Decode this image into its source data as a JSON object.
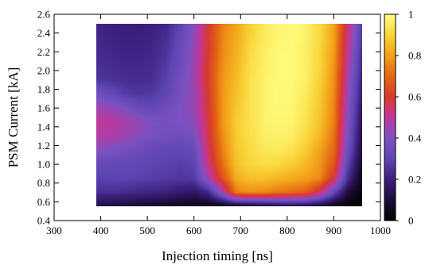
{
  "chart_data": {
    "type": "heatmap",
    "title": "",
    "xlabel": "Injection timing [ns]",
    "ylabel": "PSM Current [kA]",
    "xlim": [
      300,
      1000
    ],
    "ylim": [
      0.4,
      2.6
    ],
    "data_extent": {
      "x": [
        390,
        960
      ],
      "y": [
        0.55,
        2.5
      ]
    },
    "xticks": [
      300,
      400,
      500,
      600,
      700,
      800,
      900,
      1000
    ],
    "yticks": [
      0.4,
      0.6,
      0.8,
      1.0,
      1.2,
      1.4,
      1.6,
      1.8,
      2.0,
      2.2,
      2.4,
      2.6
    ],
    "ytick_labels": [
      "0.4",
      "0.6",
      "0.8",
      "1.0",
      "1.2",
      "1.4",
      "1.6",
      "1.8",
      "2.0",
      "2.2",
      "2.4",
      "2.6"
    ],
    "colorbar": {
      "range": [
        0,
        1
      ],
      "ticks": [
        0,
        0.2,
        0.4,
        0.6,
        0.8,
        1
      ],
      "tick_labels": [
        "0",
        "0.2",
        "0.4",
        "0.6",
        "0.8",
        "1"
      ]
    },
    "colormap": [
      "#000000",
      "#1c0c38",
      "#3c1f7e",
      "#5e45b2",
      "#7b52c2",
      "#c2379b",
      "#d83a2e",
      "#e46614",
      "#f3a119",
      "#f9d53a",
      "#ffff80"
    ],
    "grid": false,
    "legend": "none",
    "grid_x": [
      390,
      420,
      450,
      480,
      510,
      540,
      570,
      600,
      630,
      660,
      690,
      720,
      750,
      780,
      810,
      840,
      870,
      900,
      930,
      960
    ],
    "grid_y": [
      0.55,
      0.7,
      0.85,
      1.0,
      1.15,
      1.3,
      1.45,
      1.6,
      1.75,
      1.9,
      2.05,
      2.2,
      2.35,
      2.5
    ],
    "values": [
      [
        0.12,
        0.11,
        0.1,
        0.09,
        0.08,
        0.07,
        0.06,
        0.05,
        0.04,
        0.04,
        0.05,
        0.07,
        0.09,
        0.11,
        0.12,
        0.11,
        0.08,
        0.04,
        0.02,
        0.01
      ],
      [
        0.24,
        0.24,
        0.23,
        0.22,
        0.21,
        0.2,
        0.18,
        0.16,
        0.22,
        0.45,
        0.74,
        0.77,
        0.76,
        0.73,
        0.71,
        0.68,
        0.55,
        0.32,
        0.1,
        0.02
      ],
      [
        0.29,
        0.3,
        0.3,
        0.29,
        0.28,
        0.27,
        0.26,
        0.27,
        0.45,
        0.65,
        0.82,
        0.86,
        0.86,
        0.84,
        0.82,
        0.8,
        0.76,
        0.58,
        0.23,
        0.05
      ],
      [
        0.33,
        0.32,
        0.32,
        0.31,
        0.3,
        0.29,
        0.28,
        0.3,
        0.52,
        0.71,
        0.86,
        0.9,
        0.92,
        0.91,
        0.88,
        0.84,
        0.78,
        0.66,
        0.3,
        0.07
      ],
      [
        0.42,
        0.4,
        0.38,
        0.35,
        0.32,
        0.31,
        0.31,
        0.33,
        0.55,
        0.74,
        0.87,
        0.91,
        0.94,
        0.95,
        0.93,
        0.88,
        0.8,
        0.7,
        0.35,
        0.1
      ],
      [
        0.48,
        0.47,
        0.45,
        0.42,
        0.39,
        0.37,
        0.36,
        0.39,
        0.57,
        0.76,
        0.88,
        0.93,
        0.96,
        0.97,
        0.96,
        0.91,
        0.84,
        0.72,
        0.38,
        0.12
      ],
      [
        0.5,
        0.49,
        0.47,
        0.44,
        0.4,
        0.38,
        0.4,
        0.42,
        0.58,
        0.78,
        0.88,
        0.93,
        0.97,
        0.98,
        0.97,
        0.93,
        0.86,
        0.74,
        0.4,
        0.14
      ],
      [
        0.45,
        0.44,
        0.4,
        0.34,
        0.32,
        0.36,
        0.4,
        0.44,
        0.59,
        0.78,
        0.87,
        0.93,
        0.97,
        0.99,
        0.98,
        0.94,
        0.87,
        0.75,
        0.42,
        0.16
      ],
      [
        0.38,
        0.33,
        0.28,
        0.26,
        0.27,
        0.31,
        0.38,
        0.44,
        0.6,
        0.78,
        0.86,
        0.93,
        0.97,
        0.99,
        0.98,
        0.95,
        0.88,
        0.76,
        0.44,
        0.18
      ],
      [
        0.26,
        0.25,
        0.24,
        0.23,
        0.24,
        0.29,
        0.37,
        0.45,
        0.61,
        0.78,
        0.85,
        0.93,
        0.97,
        0.99,
        0.99,
        0.96,
        0.89,
        0.77,
        0.46,
        0.2
      ],
      [
        0.24,
        0.23,
        0.22,
        0.22,
        0.23,
        0.27,
        0.35,
        0.45,
        0.61,
        0.77,
        0.84,
        0.92,
        0.96,
        0.99,
        0.99,
        0.96,
        0.9,
        0.78,
        0.48,
        0.22
      ],
      [
        0.23,
        0.22,
        0.21,
        0.21,
        0.22,
        0.25,
        0.34,
        0.44,
        0.6,
        0.76,
        0.83,
        0.91,
        0.96,
        0.99,
        0.99,
        0.96,
        0.9,
        0.79,
        0.5,
        0.24
      ],
      [
        0.22,
        0.21,
        0.2,
        0.2,
        0.21,
        0.24,
        0.32,
        0.43,
        0.6,
        0.75,
        0.82,
        0.9,
        0.95,
        0.98,
        0.99,
        0.97,
        0.91,
        0.8,
        0.52,
        0.26
      ],
      [
        0.21,
        0.2,
        0.19,
        0.19,
        0.2,
        0.22,
        0.3,
        0.42,
        0.59,
        0.74,
        0.81,
        0.89,
        0.95,
        0.98,
        0.99,
        0.97,
        0.91,
        0.8,
        0.53,
        0.28
      ]
    ]
  }
}
